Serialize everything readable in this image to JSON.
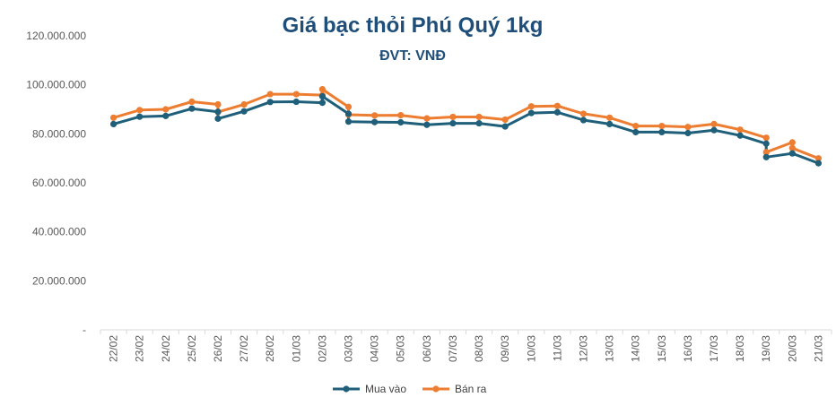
{
  "chart_data": {
    "type": "line",
    "title": "Giá bạc thỏi Phú Quý 1kg",
    "subtitle": "ĐVT: VNĐ",
    "xlabel": "",
    "ylabel": "",
    "ylim": [
      0,
      120000000
    ],
    "y_ticks": [
      {
        "value": 0,
        "label": "-"
      },
      {
        "value": 20000000,
        "label": "20.000.000"
      },
      {
        "value": 40000000,
        "label": "40.000.000"
      },
      {
        "value": 60000000,
        "label": "60.000.000"
      },
      {
        "value": 80000000,
        "label": "80.000.000"
      },
      {
        "value": 100000000,
        "label": "100.000.000"
      },
      {
        "value": 120000000,
        "label": "120.000.000"
      }
    ],
    "categories": [
      "22/02",
      "23/02",
      "24/02",
      "25/02",
      "26/02",
      "27/02",
      "28/02",
      "01/03",
      "02/03",
      "03/03",
      "04/03",
      "05/03",
      "06/03",
      "07/03",
      "08/03",
      "09/03",
      "10/03",
      "11/03",
      "12/03",
      "13/03",
      "14/03",
      "15/03",
      "16/03",
      "17/03",
      "18/03",
      "19/03",
      "20/03",
      "21/03"
    ],
    "series": [
      {
        "name": "Mua vào",
        "color": "#1f5f7a",
        "points": [
          {
            "x": 0,
            "y": 84000000
          },
          {
            "x": 1,
            "y": 87000000
          },
          {
            "x": 2,
            "y": 87300000
          },
          {
            "x": 3,
            "y": 90300000
          },
          {
            "x": 4,
            "y": 89000000
          },
          {
            "x": 4,
            "y": 86200000
          },
          {
            "x": 5,
            "y": 89200000
          },
          {
            "x": 6,
            "y": 93000000
          },
          {
            "x": 7,
            "y": 93100000
          },
          {
            "x": 8,
            "y": 92700000
          },
          {
            "x": 8,
            "y": 95300000
          },
          {
            "x": 9,
            "y": 88200000
          },
          {
            "x": 9,
            "y": 85000000
          },
          {
            "x": 10,
            "y": 84800000
          },
          {
            "x": 11,
            "y": 84700000
          },
          {
            "x": 12,
            "y": 83700000
          },
          {
            "x": 13,
            "y": 84300000
          },
          {
            "x": 14,
            "y": 84300000
          },
          {
            "x": 15,
            "y": 83000000
          },
          {
            "x": 16,
            "y": 88500000
          },
          {
            "x": 17,
            "y": 88800000
          },
          {
            "x": 18,
            "y": 85600000
          },
          {
            "x": 19,
            "y": 84000000
          },
          {
            "x": 20,
            "y": 80700000
          },
          {
            "x": 21,
            "y": 80700000
          },
          {
            "x": 22,
            "y": 80300000
          },
          {
            "x": 23,
            "y": 81500000
          },
          {
            "x": 24,
            "y": 79300000
          },
          {
            "x": 25,
            "y": 76000000
          },
          {
            "x": 25,
            "y": 70500000
          },
          {
            "x": 26,
            "y": 72000000
          },
          {
            "x": 27,
            "y": 68000000
          }
        ]
      },
      {
        "name": "Bán ra",
        "color": "#ed7d31",
        "points": [
          {
            "x": 0,
            "y": 86600000
          },
          {
            "x": 1,
            "y": 89700000
          },
          {
            "x": 2,
            "y": 90000000
          },
          {
            "x": 3,
            "y": 93100000
          },
          {
            "x": 4,
            "y": 92000000
          },
          {
            "x": 4,
            "y": 88900000
          },
          {
            "x": 5,
            "y": 92000000
          },
          {
            "x": 6,
            "y": 96200000
          },
          {
            "x": 7,
            "y": 96200000
          },
          {
            "x": 8,
            "y": 95800000
          },
          {
            "x": 8,
            "y": 98200000
          },
          {
            "x": 9,
            "y": 91000000
          },
          {
            "x": 9,
            "y": 87800000
          },
          {
            "x": 10,
            "y": 87500000
          },
          {
            "x": 11,
            "y": 87600000
          },
          {
            "x": 12,
            "y": 86300000
          },
          {
            "x": 13,
            "y": 86900000
          },
          {
            "x": 14,
            "y": 86900000
          },
          {
            "x": 15,
            "y": 85800000
          },
          {
            "x": 16,
            "y": 91200000
          },
          {
            "x": 17,
            "y": 91400000
          },
          {
            "x": 18,
            "y": 88200000
          },
          {
            "x": 19,
            "y": 86600000
          },
          {
            "x": 20,
            "y": 83200000
          },
          {
            "x": 21,
            "y": 83200000
          },
          {
            "x": 22,
            "y": 82800000
          },
          {
            "x": 23,
            "y": 84000000
          },
          {
            "x": 24,
            "y": 81700000
          },
          {
            "x": 25,
            "y": 78400000
          },
          {
            "x": 25,
            "y": 72500000
          },
          {
            "x": 26,
            "y": 76500000
          },
          {
            "x": 26,
            "y": 74200000
          },
          {
            "x": 27,
            "y": 70000000
          }
        ]
      }
    ],
    "legend": {
      "position": "bottom",
      "items": [
        "Mua vào",
        "Bán ra"
      ]
    },
    "grid": false,
    "colors": {
      "title": "#1f4e79",
      "axis": "#d9d9d9",
      "tick": "#595959"
    }
  }
}
